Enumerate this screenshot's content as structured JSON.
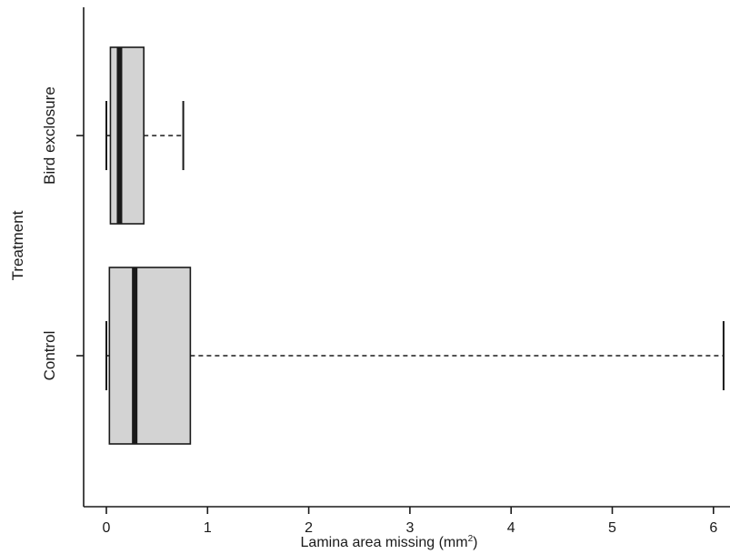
{
  "chart_data": {
    "type": "boxplot",
    "orientation": "horizontal",
    "xlabel": "Lamina area missing (mm",
    "xlabel_superscript": "2",
    "xlabel_suffix": ")",
    "ylabel": "Treatment",
    "xlim": [
      -0.22,
      6.12
    ],
    "xticks": [
      0,
      1,
      2,
      3,
      4,
      5,
      6
    ],
    "xtick_labels": [
      "0",
      "1",
      "2",
      "3",
      "4",
      "5",
      "6"
    ],
    "grid": false,
    "box_color": "#d3d3d3",
    "line_color": "#1a1a1a",
    "groups": [
      {
        "label": "Bird exclosure",
        "whisker_low": 0.0,
        "q1": 0.04,
        "median": 0.13,
        "q3": 0.37,
        "whisker_high": 0.76
      },
      {
        "label": "Control",
        "whisker_low": 0.0,
        "q1": 0.03,
        "median": 0.28,
        "q3": 0.83,
        "whisker_high": 6.1
      }
    ]
  }
}
